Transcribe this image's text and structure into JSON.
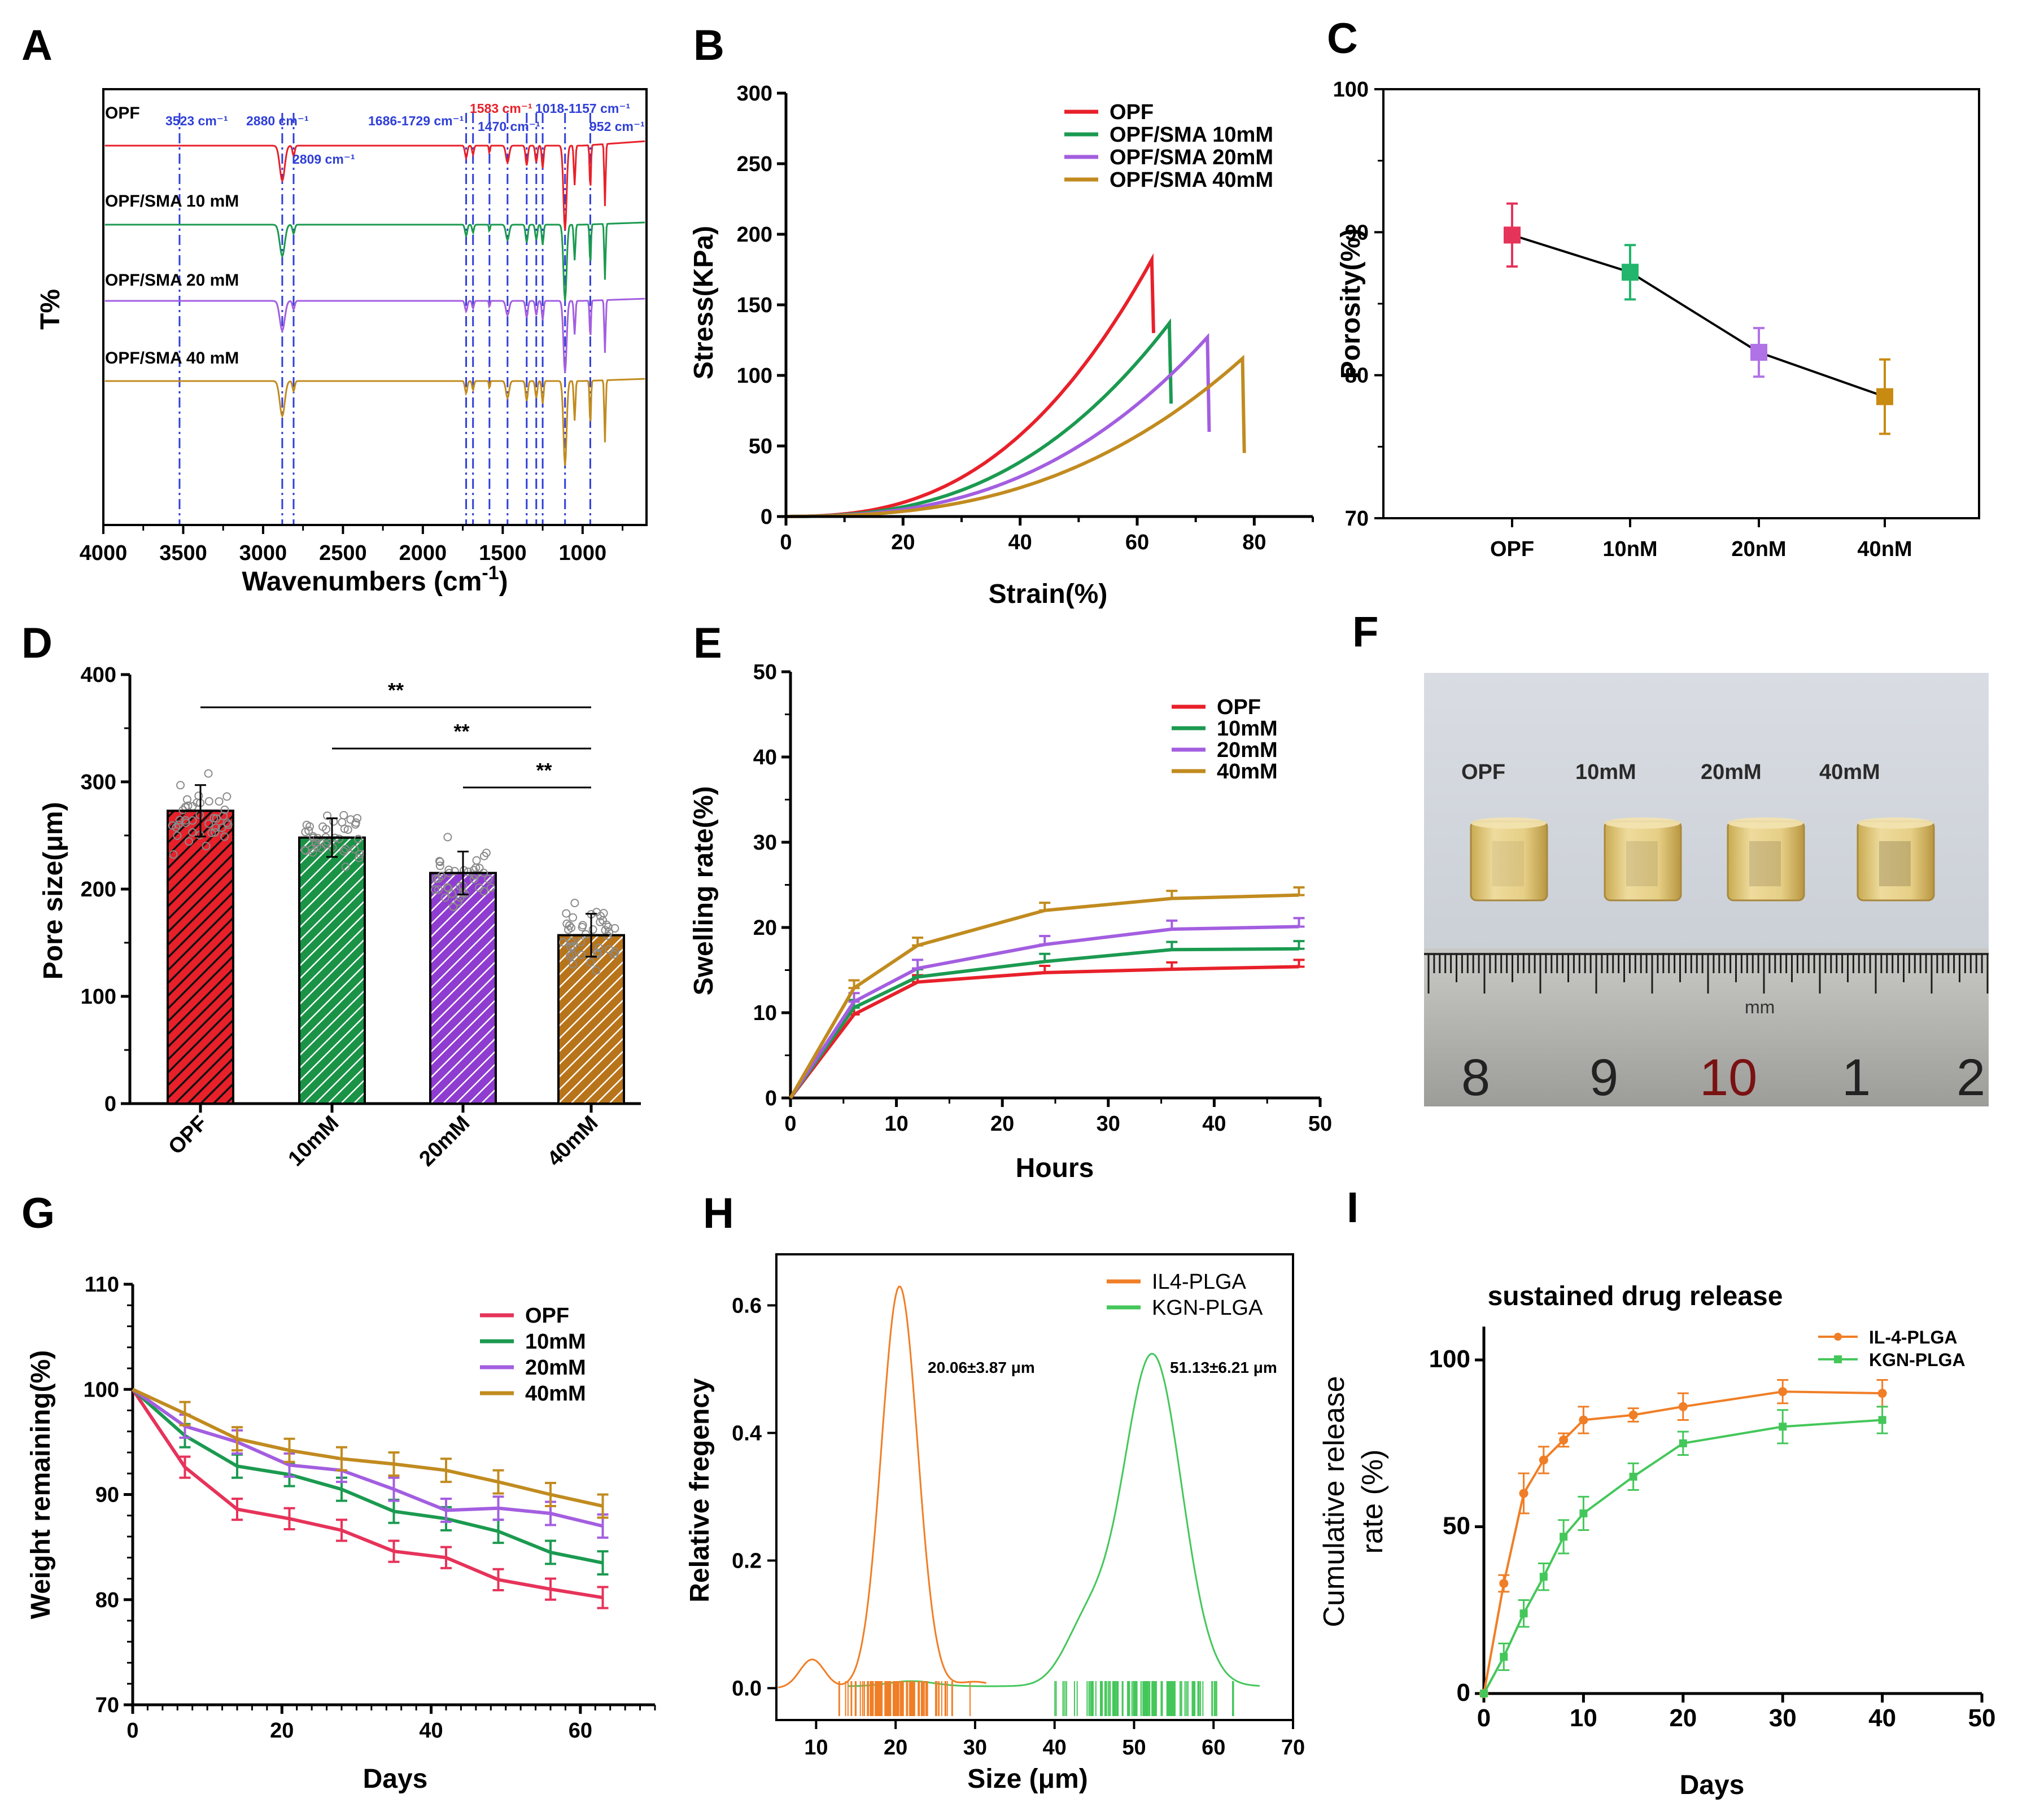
{
  "panel_labels": [
    "A",
    "B",
    "C",
    "D",
    "E",
    "F",
    "G",
    "H",
    "I"
  ],
  "colors": {
    "opf": "#e8202a",
    "mM10": "#1b9a50",
    "mM20": "#a35ee0",
    "mM40": "#c18b1f",
    "c_opf": "#e6335a",
    "c_10": "#22b56b",
    "c_20": "#b072e6",
    "c_40": "#c88a10",
    "il4": "#f07e26",
    "kgn": "#44c75a",
    "ftir_line": "#2f3fd8"
  },
  "chart_data": [
    {
      "id": "A",
      "type": "line",
      "title": "",
      "xlabel": "Wavenumbers (cm",
      "xlabel_sup": "-1",
      "xlabel_end": ")",
      "ylabel": "T%",
      "xlim": [
        4000,
        600
      ],
      "xticks": [
        "4000",
        "3500",
        "3000",
        "2500",
        "2000",
        "1500",
        "1000"
      ],
      "series": [
        {
          "name": "OPF",
          "label": "OPF"
        },
        {
          "name": "OPF/SMA 10 mM",
          "label": "OPF/SMA 10 mM"
        },
        {
          "name": "OPF/SMA 20 mM",
          "label": "OPF/SMA 20 mM"
        },
        {
          "name": "OPF/SMA 40 mM",
          "label": "OPF/SMA 40 mM"
        }
      ],
      "annotations": [
        "3523 cm⁻¹",
        "2880 cm⁻¹",
        "2809 cm⁻¹",
        "1686-1729 cm⁻¹",
        "1583 cm⁻¹",
        "1470 cm⁻¹",
        "1018-1157 cm⁻¹",
        "952 cm⁻¹"
      ],
      "marked_wavenumbers": [
        3523,
        2880,
        2809,
        1729,
        1686,
        1583,
        1470,
        1350,
        1290,
        1250,
        1110,
        952
      ]
    },
    {
      "id": "B",
      "type": "line",
      "title": "",
      "xlabel": "Strain(%)",
      "ylabel": "Stress(KPa)",
      "xlim": [
        0,
        90
      ],
      "ylim": [
        0,
        300
      ],
      "xticks": [
        "0",
        "20",
        "40",
        "60",
        "80"
      ],
      "yticks": [
        "0",
        "50",
        "100",
        "150",
        "200",
        "250",
        "300"
      ],
      "series": [
        {
          "name": "OPF",
          "break_strain": 62.5,
          "peak_stress": 180,
          "drop_to": 130
        },
        {
          "name": "OPF/SMA 10mM",
          "break_strain": 65.5,
          "peak_stress": 135,
          "drop_to": 80
        },
        {
          "name": "OPF/SMA 20mM",
          "break_strain": 72,
          "peak_stress": 125,
          "drop_to": 60
        },
        {
          "name": "OPF/SMA 40mM",
          "break_strain": 78,
          "peak_stress": 110,
          "drop_to": 45
        }
      ]
    },
    {
      "id": "C",
      "type": "line",
      "title": "",
      "xlabel": "",
      "ylabel": "Porosity(%)",
      "ylim": [
        70,
        100
      ],
      "categories": [
        "OPF",
        "10nM",
        "20nM",
        "40nM"
      ],
      "yticks": [
        "70",
        "80",
        "90",
        "100"
      ],
      "values": [
        89.8,
        87.2,
        81.6,
        78.5
      ],
      "errors": [
        2.2,
        1.9,
        1.7,
        2.6
      ]
    },
    {
      "id": "D",
      "type": "bar",
      "title": "",
      "xlabel": "",
      "ylabel": "Pore size(μm)",
      "ylim": [
        0,
        400
      ],
      "categories": [
        "OPF",
        "10mM",
        "20mM",
        "40mM"
      ],
      "yticks": [
        "0",
        "100",
        "200",
        "300",
        "400"
      ],
      "values": [
        273,
        248,
        215,
        157
      ],
      "errors": [
        24,
        18,
        20,
        20
      ],
      "significance": [
        "**",
        "**",
        "**"
      ]
    },
    {
      "id": "E",
      "type": "line",
      "title": "",
      "xlabel": "Hours",
      "ylabel": "Swelling rate(%)",
      "xlim": [
        0,
        50
      ],
      "ylim": [
        0,
        50
      ],
      "xticks": [
        "0",
        "10",
        "20",
        "30",
        "40",
        "50"
      ],
      "yticks": [
        "0",
        "10",
        "20",
        "30",
        "40",
        "50"
      ],
      "x": [
        0,
        6,
        12,
        24,
        36,
        48
      ],
      "series": [
        {
          "name": "OPF",
          "values": [
            0,
            9.8,
            13.6,
            14.7,
            15.1,
            15.4
          ],
          "err": 0.8
        },
        {
          "name": "10mM",
          "values": [
            0,
            10.6,
            14.2,
            16.0,
            17.4,
            17.5
          ],
          "err": 0.9
        },
        {
          "name": "20mM",
          "values": [
            0,
            11.3,
            15.2,
            18.0,
            19.8,
            20.1
          ],
          "err": 1.0
        },
        {
          "name": "40mM",
          "values": [
            0,
            12.9,
            17.9,
            22.0,
            23.4,
            23.8
          ],
          "err": 0.9
        }
      ]
    },
    {
      "id": "G",
      "type": "line",
      "title": "",
      "xlabel": "Days",
      "ylabel": "Weight remaining(%)",
      "xlim": [
        0,
        70
      ],
      "ylim": [
        70,
        110
      ],
      "xticks": [
        "0",
        "20",
        "40",
        "60"
      ],
      "yticks": [
        "70",
        "80",
        "90",
        "100",
        "110"
      ],
      "x": [
        0,
        7,
        14,
        21,
        28,
        35,
        42,
        49,
        56,
        63
      ],
      "series": [
        {
          "name": "OPF",
          "values": [
            100,
            92.6,
            88.6,
            87.7,
            86.6,
            84.6,
            84.0,
            81.9,
            81.0,
            80.2
          ],
          "err": 1.0
        },
        {
          "name": "10mM",
          "values": [
            100,
            95.6,
            92.7,
            91.9,
            90.5,
            88.4,
            87.7,
            86.5,
            84.5,
            83.5
          ],
          "err": 1.1
        },
        {
          "name": "20mM",
          "values": [
            100,
            96.5,
            95.0,
            92.8,
            92.3,
            90.5,
            88.5,
            88.7,
            88.2,
            87.0
          ],
          "err": 1.1
        },
        {
          "name": "40mM",
          "values": [
            100,
            97.7,
            95.3,
            94.2,
            93.4,
            92.9,
            92.3,
            91.2,
            90.0,
            88.9
          ],
          "err": 1.1
        }
      ]
    },
    {
      "id": "H",
      "type": "line",
      "title": "",
      "xlabel": "Size (μm)",
      "ylabel": "Relative fregency",
      "xlim": [
        5,
        70
      ],
      "ylim": [
        -0.05,
        0.68
      ],
      "xticks": [
        "10",
        "20",
        "30",
        "40",
        "50",
        "60",
        "70"
      ],
      "yticks": [
        "0.0",
        "0.2",
        "0.4",
        "0.6"
      ],
      "series": [
        {
          "name": "IL4-PLGA",
          "peak_x": 20.5,
          "peak_y": 0.63,
          "annotation": "20.06±3.87 μm"
        },
        {
          "name": "KGN-PLGA",
          "peak_x": 52.3,
          "peak_y": 0.52,
          "annotation": "51.13±6.21 μm"
        }
      ]
    },
    {
      "id": "I",
      "type": "line",
      "title": "sustained drug release",
      "xlabel": "Days",
      "ylabel": "Cumulative release",
      "ylabel2": "rate  (%)",
      "xlim": [
        0,
        50
      ],
      "ylim": [
        0,
        110
      ],
      "xticks": [
        "0",
        "10",
        "20",
        "30",
        "40",
        "50"
      ],
      "yticks": [
        "0",
        "50",
        "100"
      ],
      "x": [
        0,
        2,
        4,
        6,
        8,
        10,
        15,
        20,
        30,
        40
      ],
      "series": [
        {
          "name": "IL-4-PLGA",
          "values": [
            0,
            33,
            60,
            70,
            76,
            82,
            83.5,
            86,
            90.5,
            90
          ],
          "err": [
            0,
            2.5,
            6,
            4,
            2,
            4,
            2,
            4,
            3.5,
            4
          ]
        },
        {
          "name": "KGN-PLGA",
          "values": [
            0,
            11,
            24,
            35,
            47,
            54,
            65,
            75,
            80,
            82
          ],
          "err": [
            0,
            4,
            4,
            4,
            5,
            5,
            4,
            3.5,
            5,
            4
          ]
        }
      ]
    }
  ],
  "photo": {
    "labels": [
      "OPF",
      "10mM",
      "20mM",
      "40mM"
    ],
    "ruler_numbers": [
      "8",
      "9",
      "10",
      "1",
      "2"
    ],
    "ruler_unit": "mm"
  }
}
